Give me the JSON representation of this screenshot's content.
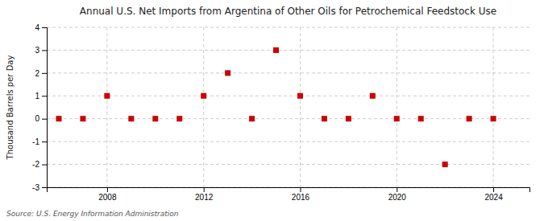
{
  "chart_data": {
    "type": "scatter",
    "title": "Annual U.S. Net Imports from Argentina of Other Oils for Petrochemical Feedstock Use",
    "y_label": "Thousand Barrels per Day",
    "annotations": [
      "Source: U.S. Energy Information Administration"
    ],
    "x": [
      2006,
      2007,
      2008,
      2009,
      2010,
      2011,
      2012,
      2013,
      2014,
      2015,
      2016,
      2017,
      2018,
      2019,
      2020,
      2021,
      2022,
      2023,
      2024
    ],
    "values": [
      0,
      0,
      1,
      0,
      0,
      0,
      1,
      2,
      0,
      3,
      1,
      0,
      0,
      1,
      0,
      0,
      -2,
      0,
      0
    ],
    "color": "#cc0000",
    "marker": "square",
    "xlim": [
      2005.5,
      2025.5
    ],
    "ylim": [
      -3,
      4
    ],
    "xticks": [
      2008,
      2012,
      2016,
      2020,
      2024
    ],
    "yticks": [
      -3,
      -2,
      -1,
      0,
      1,
      2,
      3,
      4
    ],
    "grid": true
  }
}
